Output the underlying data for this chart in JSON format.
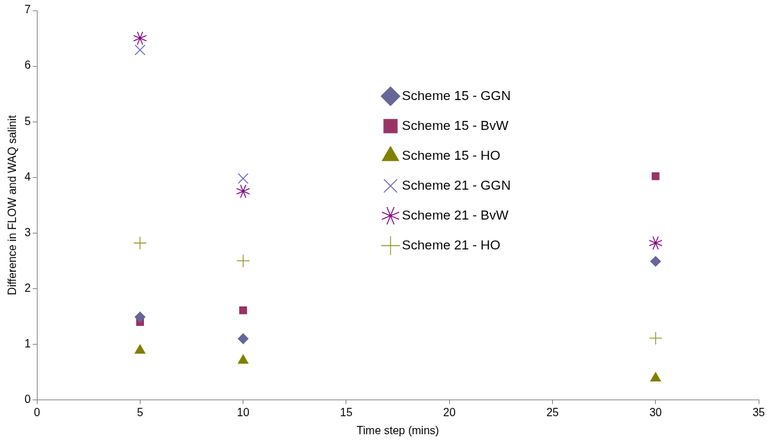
{
  "chart_data": {
    "type": "scatter",
    "xlabel": "Time step (mins)",
    "ylabel": "Difference in FLOW and WAQ salinit",
    "x": [
      5,
      10,
      30
    ],
    "series": [
      {
        "name": "Scheme 15 - GGN",
        "color": "#666699",
        "marker": "diamond",
        "values": [
          1.49,
          1.1,
          2.49
        ]
      },
      {
        "name": "Scheme 15 - BvW",
        "color": "#993366",
        "marker": "square",
        "values": [
          1.4,
          1.61,
          4.02
        ]
      },
      {
        "name": "Scheme 15 - HO",
        "color": "#808000",
        "marker": "triangle",
        "values": [
          0.89,
          0.71,
          0.39
        ]
      },
      {
        "name": "Scheme 21 - GGN",
        "color": "#6666cc",
        "marker": "cross",
        "values": [
          6.29,
          3.98,
          null
        ]
      },
      {
        "name": "Scheme 21 - BvW",
        "color": "#800080",
        "values": [
          6.5,
          3.75,
          2.82
        ]
      },
      {
        "name": "Scheme 21 - HO",
        "color": "#999933",
        "marker": "plus",
        "values": [
          2.82,
          2.5,
          1.11
        ]
      }
    ],
    "xlim": [
      0,
      35
    ],
    "xticks": [
      0,
      5,
      10,
      15,
      20,
      25,
      30,
      35
    ],
    "ylim": [
      0,
      7
    ],
    "yticks": [
      0,
      1,
      2,
      3,
      4,
      5,
      6,
      7
    ],
    "grid": false,
    "legend": "top"
  }
}
